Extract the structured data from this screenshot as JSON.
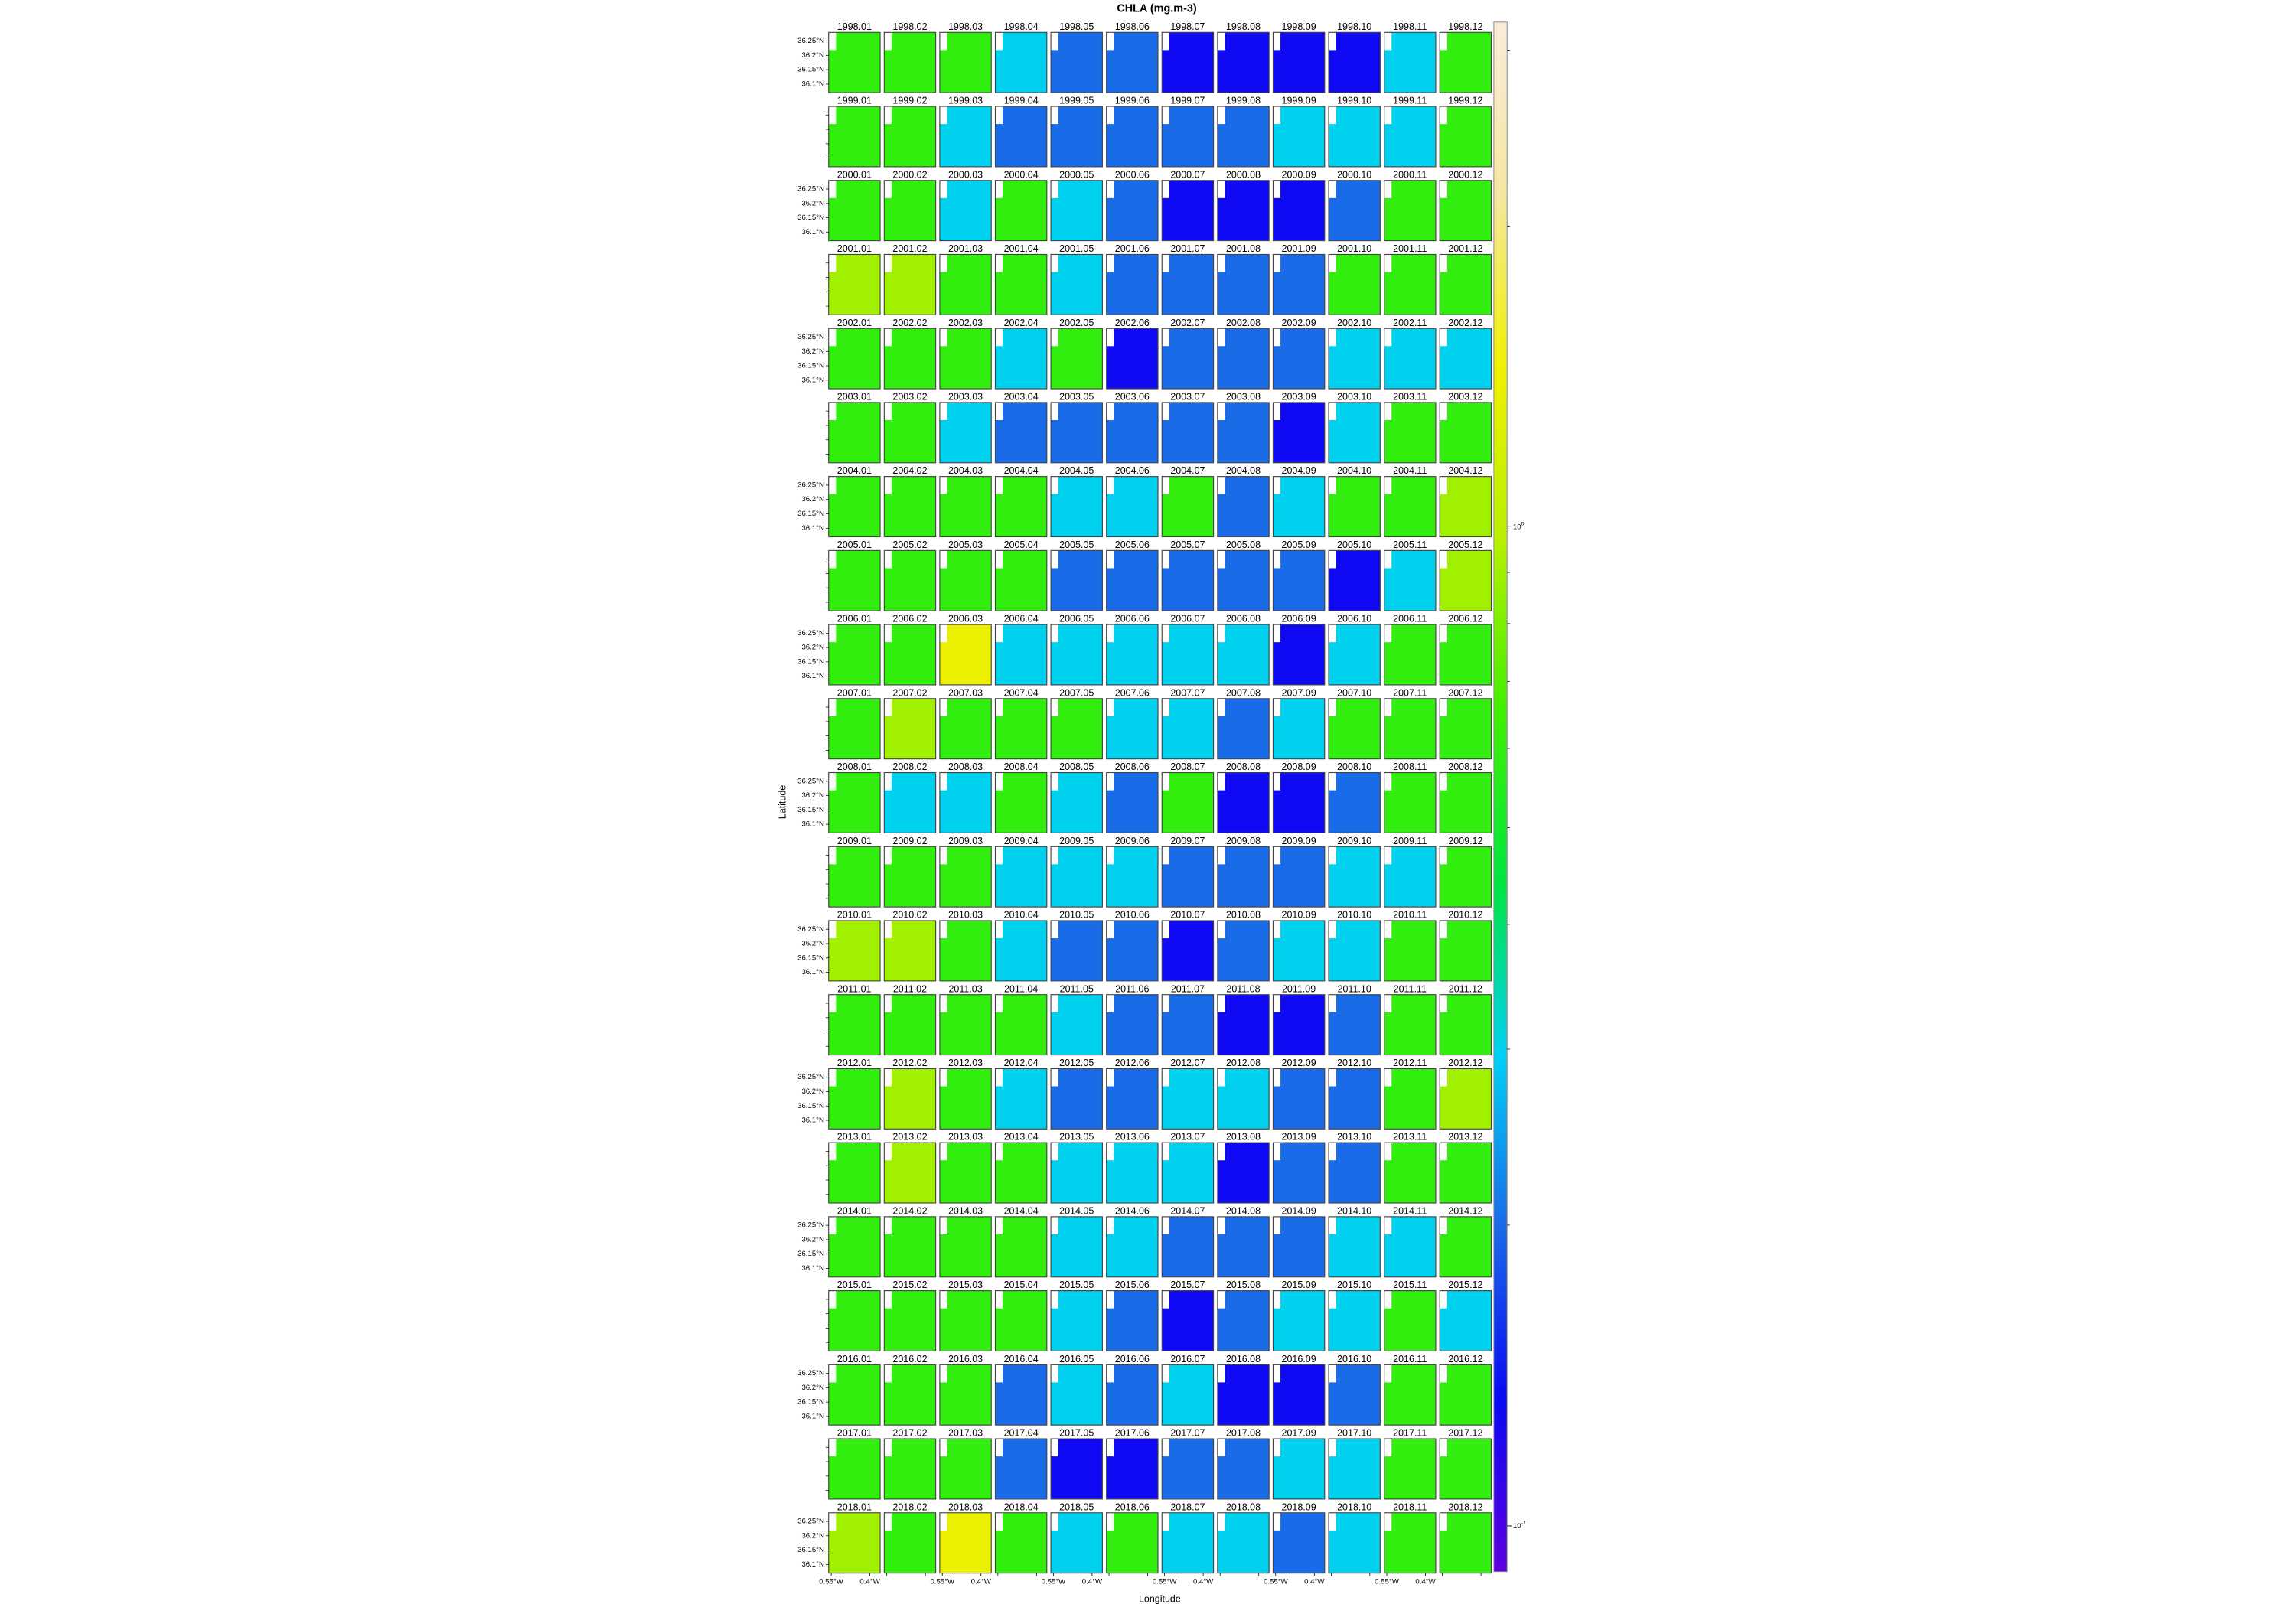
{
  "chart_data": {
    "type": "heatmap-panels",
    "title": "CHLA (mg.m-3)",
    "x_label": "Longitude",
    "y_label": "Latitude",
    "categories": [
      "1998.01",
      "1998.02",
      "1998.03",
      "1998.04",
      "1998.05",
      "1998.06",
      "1998.07",
      "1998.08",
      "1998.09",
      "1998.10",
      "1998.11",
      "1998.12",
      "1999.01",
      "1999.02",
      "1999.03",
      "1999.04",
      "1999.05",
      "1999.06",
      "1999.07",
      "1999.08",
      "1999.09",
      "1999.10",
      "1999.11",
      "1999.12",
      "2000.01",
      "2000.02",
      "2000.03",
      "2000.04",
      "2000.05",
      "2000.06",
      "2000.07",
      "2000.08",
      "2000.09",
      "2000.10",
      "2000.11",
      "2000.12",
      "2001.01",
      "2001.02",
      "2001.03",
      "2001.04",
      "2001.05",
      "2001.06",
      "2001.07",
      "2001.08",
      "2001.09",
      "2001.10",
      "2001.11",
      "2001.12",
      "2002.01",
      "2002.02",
      "2002.03",
      "2002.04",
      "2002.05",
      "2002.06",
      "2002.07",
      "2002.08",
      "2002.09",
      "2002.10",
      "2002.11",
      "2002.12",
      "2003.01",
      "2003.02",
      "2003.03",
      "2003.04",
      "2003.05",
      "2003.06",
      "2003.07",
      "2003.08",
      "2003.09",
      "2003.10",
      "2003.11",
      "2003.12",
      "2004.01",
      "2004.02",
      "2004.03",
      "2004.04",
      "2004.05",
      "2004.06",
      "2004.07",
      "2004.08",
      "2004.09",
      "2004.10",
      "2004.11",
      "2004.12",
      "2005.01",
      "2005.02",
      "2005.03",
      "2005.04",
      "2005.05",
      "2005.06",
      "2005.07",
      "2005.08",
      "2005.09",
      "2005.10",
      "2005.11",
      "2005.12",
      "2006.01",
      "2006.02",
      "2006.03",
      "2006.04",
      "2006.05",
      "2006.06",
      "2006.07",
      "2006.08",
      "2006.09",
      "2006.10",
      "2006.11",
      "2006.12",
      "2007.01",
      "2007.02",
      "2007.03",
      "2007.04",
      "2007.05",
      "2007.06",
      "2007.07",
      "2007.08",
      "2007.09",
      "2007.10",
      "2007.11",
      "2007.12",
      "2008.01",
      "2008.02",
      "2008.03",
      "2008.04",
      "2008.05",
      "2008.06",
      "2008.07",
      "2008.08",
      "2008.09",
      "2008.10",
      "2008.11",
      "2008.12",
      "2009.01",
      "2009.02",
      "2009.03",
      "2009.04",
      "2009.05",
      "2009.06",
      "2009.07",
      "2009.08",
      "2009.09",
      "2009.10",
      "2009.11",
      "2009.12",
      "2010.01",
      "2010.02",
      "2010.03",
      "2010.04",
      "2010.05",
      "2010.06",
      "2010.07",
      "2010.08",
      "2010.09",
      "2010.10",
      "2010.11",
      "2010.12",
      "2011.01",
      "2011.02",
      "2011.03",
      "2011.04",
      "2011.05",
      "2011.06",
      "2011.07",
      "2011.08",
      "2011.09",
      "2011.10",
      "2011.11",
      "2011.12",
      "2012.01",
      "2012.02",
      "2012.03",
      "2012.04",
      "2012.05",
      "2012.06",
      "2012.07",
      "2012.08",
      "2012.09",
      "2012.10",
      "2012.11",
      "2012.12",
      "2013.01",
      "2013.02",
      "2013.03",
      "2013.04",
      "2013.05",
      "2013.06",
      "2013.07",
      "2013.08",
      "2013.09",
      "2013.10",
      "2013.11",
      "2013.12",
      "2014.01",
      "2014.02",
      "2014.03",
      "2014.04",
      "2014.05",
      "2014.06",
      "2014.07",
      "2014.08",
      "2014.09",
      "2014.10",
      "2014.11",
      "2014.12",
      "2015.01",
      "2015.02",
      "2015.03",
      "2015.04",
      "2015.05",
      "2015.06",
      "2015.07",
      "2015.08",
      "2015.09",
      "2015.10",
      "2015.11",
      "2015.12",
      "2016.01",
      "2016.02",
      "2016.03",
      "2016.04",
      "2016.05",
      "2016.06",
      "2016.07",
      "2016.08",
      "2016.09",
      "2016.10",
      "2016.11",
      "2016.12",
      "2017.01",
      "2017.02",
      "2017.03",
      "2017.04",
      "2017.05",
      "2017.06",
      "2017.07",
      "2017.08",
      "2017.09",
      "2017.10",
      "2017.11",
      "2017.12",
      "2018.01",
      "2018.02",
      "2018.03",
      "2018.04",
      "2018.05",
      "2018.06",
      "2018.07",
      "2018.08",
      "2018.09",
      "2018.10",
      "2018.11",
      "2018.12"
    ],
    "values": [
      0.6,
      0.6,
      0.6,
      0.3,
      0.2,
      0.2,
      0.13,
      0.13,
      0.13,
      0.13,
      0.3,
      0.6,
      0.6,
      0.6,
      0.3,
      0.2,
      0.2,
      0.2,
      0.2,
      0.2,
      0.3,
      0.3,
      0.3,
      0.6,
      0.6,
      0.6,
      0.3,
      0.6,
      0.3,
      0.2,
      0.13,
      0.13,
      0.13,
      0.2,
      0.6,
      0.6,
      0.9,
      0.9,
      0.6,
      0.6,
      0.3,
      0.2,
      0.2,
      0.2,
      0.2,
      0.6,
      0.6,
      0.6,
      0.6,
      0.6,
      0.6,
      0.3,
      0.6,
      0.13,
      0.2,
      0.2,
      0.2,
      0.3,
      0.3,
      0.3,
      0.6,
      0.6,
      0.3,
      0.2,
      0.2,
      0.2,
      0.2,
      0.2,
      0.13,
      0.3,
      0.6,
      0.6,
      0.6,
      0.6,
      0.6,
      0.6,
      0.3,
      0.3,
      0.6,
      0.2,
      0.3,
      0.6,
      0.6,
      0.9,
      0.6,
      0.6,
      0.6,
      0.6,
      0.2,
      0.2,
      0.2,
      0.2,
      0.2,
      0.13,
      0.3,
      0.9,
      0.6,
      0.6,
      1.4,
      0.3,
      0.3,
      0.3,
      0.3,
      0.3,
      0.13,
      0.3,
      0.6,
      0.6,
      0.6,
      0.9,
      0.6,
      0.6,
      0.6,
      0.3,
      0.3,
      0.2,
      0.3,
      0.6,
      0.6,
      0.6,
      0.6,
      0.3,
      0.3,
      0.6,
      0.3,
      0.2,
      0.6,
      0.13,
      0.13,
      0.2,
      0.6,
      0.6,
      0.6,
      0.6,
      0.6,
      0.3,
      0.3,
      0.3,
      0.2,
      0.2,
      0.2,
      0.3,
      0.3,
      0.6,
      0.9,
      0.9,
      0.6,
      0.3,
      0.2,
      0.2,
      0.13,
      0.2,
      0.3,
      0.3,
      0.6,
      0.6,
      0.6,
      0.6,
      0.6,
      0.6,
      0.3,
      0.2,
      0.2,
      0.13,
      0.13,
      0.2,
      0.6,
      0.6,
      0.6,
      0.9,
      0.6,
      0.3,
      0.2,
      0.2,
      0.3,
      0.3,
      0.2,
      0.2,
      0.6,
      0.9,
      0.6,
      0.9,
      0.6,
      0.6,
      0.3,
      0.3,
      0.3,
      0.13,
      0.2,
      0.2,
      0.6,
      0.6,
      0.6,
      0.6,
      0.6,
      0.6,
      0.3,
      0.3,
      0.2,
      0.2,
      0.2,
      0.3,
      0.3,
      0.6,
      0.6,
      0.6,
      0.6,
      0.6,
      0.3,
      0.2,
      0.13,
      0.2,
      0.3,
      0.3,
      0.6,
      0.3,
      0.6,
      0.6,
      0.6,
      0.2,
      0.3,
      0.2,
      0.3,
      0.13,
      0.13,
      0.2,
      0.6,
      0.6,
      0.6,
      0.6,
      0.6,
      0.2,
      0.13,
      0.13,
      0.2,
      0.2,
      0.3,
      0.3,
      0.6,
      0.6,
      0.9,
      0.6,
      1.4,
      0.6,
      0.3,
      0.6,
      0.3,
      0.3,
      0.2,
      0.3,
      0.6,
      0.6
    ],
    "xlim": [
      -0.56,
      -0.36
    ],
    "xticks": [
      {
        "value": -0.55,
        "label": "0.55°W"
      },
      {
        "value": -0.4,
        "label": "0.4°W"
      }
    ],
    "ylim": [
      36.07,
      36.28
    ],
    "yticks": [
      {
        "value": 36.25,
        "label": "36.25°N"
      },
      {
        "value": 36.2,
        "label": "36.2°N"
      },
      {
        "value": 36.15,
        "label": "36.15°N"
      },
      {
        "value": 36.1,
        "label": "36.1°N"
      }
    ],
    "zlim": [
      0.09,
      3.2
    ],
    "log_scale": true,
    "zticks": [
      {
        "value": 0.1,
        "base": "10",
        "exponent": "-1"
      },
      {
        "value": 1,
        "base": "10",
        "exponent": "0"
      }
    ],
    "zminor": [
      0.2,
      0.3,
      0.4,
      0.5,
      0.6,
      0.7,
      0.8,
      0.9,
      2,
      3
    ],
    "colors": [
      "#6000e0",
      "#0a0af5",
      "#1a6ae8",
      "#00d0f5",
      "#00e640",
      "#40f000",
      "#b8f000",
      "#f0f000",
      "#f5e6a0",
      "#f8ecd8"
    ]
  }
}
